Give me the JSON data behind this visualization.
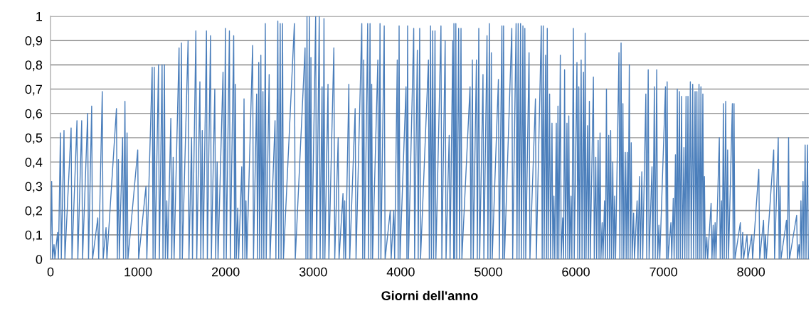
{
  "chart_data": {
    "type": "line",
    "xlabel": "Giorni dell'anno",
    "xlim": [
      0,
      8660
    ],
    "xticks": [
      0,
      1000,
      2000,
      3000,
      4000,
      5000,
      6000,
      7000,
      8000
    ],
    "ylim": [
      0,
      1
    ],
    "yticks": [
      0,
      {
        "value": 0.1,
        "label": "0,1"
      },
      {
        "value": 0.2,
        "label": "0,2"
      },
      {
        "value": 0.3,
        "label": "0,3"
      },
      {
        "value": 0.4,
        "label": "0,4"
      },
      {
        "value": 0.5,
        "label": "0,5"
      },
      {
        "value": 0.6,
        "label": "0,6"
      },
      {
        "value": 0.7,
        "label": "0,7"
      },
      {
        "value": 0.8,
        "label": "0,8"
      },
      {
        "value": 0.9,
        "label": "0,9"
      },
      {
        "value": 1,
        "label": "1"
      }
    ],
    "grid": "y",
    "legend": false,
    "marker": "none",
    "line_style": "solid",
    "series": [
      {
        "color": "#4a7ebb",
        "x": [
          0,
          13,
          23,
          40,
          50,
          80,
          90,
          113,
          123,
          154,
          164,
          235,
          245,
          302,
          312,
          356,
          366,
          424,
          434,
          470,
          480,
          540,
          550,
          591,
          601,
          634,
          644,
          753,
          763,
          775,
          785,
          823,
          833,
          850,
          860,
          874,
          884,
          996,
          1006,
          1090,
          1100,
          1161,
          1171,
          1185,
          1195,
          1233,
          1243,
          1274,
          1284,
          1301,
          1311,
          1328,
          1338,
          1374,
          1384,
          1401,
          1411,
          1468,
          1478,
          1495,
          1505,
          1571,
          1581,
          1611,
          1621,
          1660,
          1670,
          1706,
          1716,
          1733,
          1743,
          1781,
          1791,
          1827,
          1837,
          1876,
          1886,
          1903,
          1913,
          1970,
          1980,
          1997,
          2007,
          2043,
          2053,
          2092,
          2102,
          2111,
          2121,
          2138,
          2148,
          2184,
          2194,
          2210,
          2220,
          2232,
          2242,
          2308,
          2318,
          2354,
          2364,
          2378,
          2388,
          2402,
          2412,
          2426,
          2436,
          2453,
          2463,
          2497,
          2507,
          2564,
          2574,
          2596,
          2606,
          2623,
          2633,
          2650,
          2660,
          2785,
          2795,
          2907,
          2917,
          2929,
          2939,
          2956,
          2966,
          2974,
          2984,
          3028,
          3038,
          3069,
          3079,
          3101,
          3111,
          3123,
          3133,
          3169,
          3179,
          3236,
          3246,
          3285,
          3295,
          3340,
          3350,
          3360,
          3370,
          3407,
          3417,
          3479,
          3489,
          3555,
          3565,
          3577,
          3587,
          3622,
          3632,
          3649,
          3659,
          3668,
          3678,
          3738,
          3748,
          3763,
          3773,
          3811,
          3821,
          3880,
          3890,
          3920,
          3930,
          3960,
          3970,
          3981,
          3991,
          4060,
          4070,
          4078,
          4088,
          4148,
          4158,
          4189,
          4199,
          4216,
          4226,
          4316,
          4326,
          4340,
          4350,
          4365,
          4375,
          4391,
          4401,
          4459,
          4469,
          4507,
          4517,
          4553,
          4563,
          4594,
          4604,
          4607,
          4617,
          4629,
          4639,
          4661,
          4671,
          4688,
          4698,
          4791,
          4801,
          4818,
          4828,
          4864,
          4874,
          4891,
          4901,
          4939,
          4949,
          4985,
          4995,
          5012,
          5022,
          5034,
          5044,
          5115,
          5125,
          5155,
          5165,
          5174,
          5184,
          5268,
          5278,
          5317,
          5327,
          5341,
          5351,
          5368,
          5378,
          5395,
          5405,
          5417,
          5427,
          5465,
          5475,
          5538,
          5548,
          5605,
          5615,
          5627,
          5637,
          5654,
          5664,
          5673,
          5683,
          5700,
          5710,
          5727,
          5737,
          5749,
          5759,
          5776,
          5786,
          5795,
          5805,
          5822,
          5832,
          5849,
          5859,
          5871,
          5881,
          5898,
          5908,
          5919,
          5929,
          5944,
          5954,
          5971,
          5981,
          6012,
          6022,
          6033,
          6043,
          6060,
          6070,
          6087,
          6097,
          6106,
          6116,
          6133,
          6143,
          6154,
          6164,
          6200,
          6210,
          6227,
          6237,
          6254,
          6264,
          6276,
          6286,
          6300,
          6310,
          6327,
          6337,
          6349,
          6359,
          6375,
          6385,
          6397,
          6407,
          6421,
          6431,
          6443,
          6453,
          6492,
          6502,
          6516,
          6526,
          6537,
          6547,
          6564,
          6574,
          6586,
          6596,
          6610,
          6620,
          6632,
          6642,
          6659,
          6669,
          6699,
          6709,
          6726,
          6736,
          6753,
          6763,
          6799,
          6809,
          6826,
          6836,
          6869,
          6879,
          6896,
          6906,
          6923,
          6933,
          6948,
          6958,
          7023,
          7033,
          7042,
          7052,
          7085,
          7095,
          7112,
          7122,
          7137,
          7147,
          7158,
          7168,
          7182,
          7192,
          7207,
          7217,
          7234,
          7244,
          7258,
          7268,
          7280,
          7290,
          7307,
          7317,
          7334,
          7344,
          7361,
          7371,
          7382,
          7392,
          7406,
          7416,
          7428,
          7438,
          7450,
          7460,
          7468,
          7478,
          7495,
          7505,
          7544,
          7554,
          7568,
          7578,
          7590,
          7600,
          7638,
          7648,
          7663,
          7673,
          7684,
          7694,
          7711,
          7721,
          7733,
          7743,
          7787,
          7797,
          7806,
          7816,
          7878,
          7888,
          7905,
          7915,
          7954,
          7964,
          8008,
          8018,
          8089,
          8099,
          8143,
          8153,
          8165,
          8175,
          8259,
          8269,
          8311,
          8321,
          8332,
          8342,
          8405,
          8415,
          8429,
          8439,
          8521,
          8531,
          8548,
          8558,
          8570,
          8580,
          8594,
          8604,
          8618,
          8628,
          8645,
          8655
        ],
        "values": [
          0,
          0.32,
          0,
          0.06,
          0,
          0.11,
          0,
          0.52,
          0,
          0.53,
          0,
          0.54,
          0,
          0.57,
          0,
          0.57,
          0,
          0.6,
          0,
          0.63,
          0,
          0.17,
          0,
          0.69,
          0,
          0.13,
          0,
          0.62,
          0,
          0.41,
          0,
          0.5,
          0,
          0.65,
          0,
          0.52,
          0,
          0.45,
          0,
          0.3,
          0,
          0.79,
          0,
          0.79,
          0,
          0.8,
          0,
          0.8,
          0,
          0.8,
          0,
          0.24,
          0,
          0.58,
          0,
          0.42,
          0,
          0.87,
          0,
          0.89,
          0,
          0.9,
          0,
          0.5,
          0,
          0.94,
          0,
          0.73,
          0,
          0.53,
          0,
          0.94,
          0,
          0.92,
          0,
          0.7,
          0,
          0.4,
          0,
          0.77,
          0,
          0.95,
          0,
          0.94,
          0,
          0.92,
          0,
          0.72,
          0,
          0.21,
          0,
          0.38,
          0,
          0.66,
          0,
          0.24,
          0,
          0.88,
          0,
          0.68,
          0,
          0.81,
          0,
          0.84,
          0,
          0.69,
          0,
          0.97,
          0,
          0.76,
          0,
          0.57,
          0,
          0.98,
          0,
          0.97,
          0,
          0.97,
          0,
          0.97,
          0,
          0.87,
          0,
          1.0,
          0,
          1.0,
          0,
          0.83,
          0,
          1.0,
          0,
          1.0,
          0,
          0.71,
          0,
          0.99,
          0,
          0.72,
          0,
          0.87,
          0,
          0.5,
          0,
          0.27,
          0,
          0.24,
          0,
          0.72,
          0,
          0.62,
          0,
          0.97,
          0,
          0.82,
          0,
          0.97,
          0,
          0.97,
          0,
          0.72,
          0,
          0.82,
          0,
          0.97,
          0,
          0.96,
          0,
          0.2,
          0,
          0.2,
          0,
          0.82,
          0,
          0.96,
          0,
          0.71,
          0,
          0.96,
          0,
          0.95,
          0,
          0.86,
          0,
          0.95,
          0,
          0.82,
          0,
          0.96,
          0,
          0.94,
          0,
          0.94,
          0,
          0.96,
          0,
          0.9,
          0,
          0.51,
          0,
          0.9,
          0,
          0.97,
          0,
          0.97,
          0,
          0.95,
          0,
          0.95,
          0,
          0.71,
          0,
          0.82,
          0,
          0.82,
          0,
          0.95,
          0,
          0.76,
          0,
          0.92,
          0,
          0.97,
          0,
          0.85,
          0,
          0.74,
          0,
          0.96,
          0,
          0.96,
          0,
          0.95,
          0,
          0.97,
          0,
          0.97,
          0,
          0.97,
          0,
          0.96,
          0,
          0.95,
          0,
          0.85,
          0,
          0.66,
          0,
          0.96,
          0,
          0.96,
          0,
          0.84,
          0,
          0.95,
          0,
          0.68,
          0,
          0.56,
          0,
          0.26,
          0,
          0.56,
          0,
          0.63,
          0,
          0.84,
          0,
          0.17,
          0,
          0.78,
          0,
          0.56,
          0,
          0.59,
          0,
          0.26,
          0,
          0.95,
          0,
          0.81,
          0,
          0.71,
          0,
          0.82,
          0,
          0.77,
          0,
          0.93,
          0,
          0.55,
          0,
          0.65,
          0,
          0.75,
          0,
          0.42,
          0,
          0.49,
          0,
          0.52,
          0,
          0.15,
          0,
          0.24,
          0,
          0.7,
          0,
          0.51,
          0,
          0.53,
          0,
          0.4,
          0,
          0.26,
          0,
          0.85,
          0,
          0.89,
          0,
          0.64,
          0,
          0.44,
          0,
          0.44,
          0,
          0.8,
          0,
          0.48,
          0,
          0.19,
          0,
          0.24,
          0,
          0.34,
          0,
          0.36,
          0,
          0.68,
          0,
          0.78,
          0,
          0.38,
          0,
          0.71,
          0,
          0.78,
          0,
          0.14,
          0,
          0.71,
          0,
          0.73,
          0,
          0.15,
          0,
          0.25,
          0,
          0.43,
          0,
          0.7,
          0,
          0.69,
          0,
          0.67,
          0,
          0.46,
          0,
          0.67,
          0,
          0.67,
          0,
          0.73,
          0,
          0.72,
          0,
          0.69,
          0,
          0.69,
          0,
          0.72,
          0,
          0.71,
          0,
          0.68,
          0,
          0.34,
          0,
          0.09,
          0,
          0.23,
          0,
          0.14,
          0,
          0.15,
          0,
          0.5,
          0,
          0.24,
          0,
          0.64,
          0,
          0.65,
          0,
          0.45,
          0,
          0.64,
          0,
          0.64,
          0,
          0.15,
          0,
          0.11,
          0,
          0.1,
          0,
          0.1,
          0,
          0.37,
          0,
          0.16,
          0,
          0.1,
          0,
          0.45,
          0,
          0.5,
          0,
          0.3,
          0,
          0.16,
          0,
          0.5,
          0,
          0.18,
          0,
          0.06,
          0,
          0.24,
          0,
          0.32,
          0,
          0.47,
          0,
          0.47,
          0
        ]
      }
    ]
  }
}
